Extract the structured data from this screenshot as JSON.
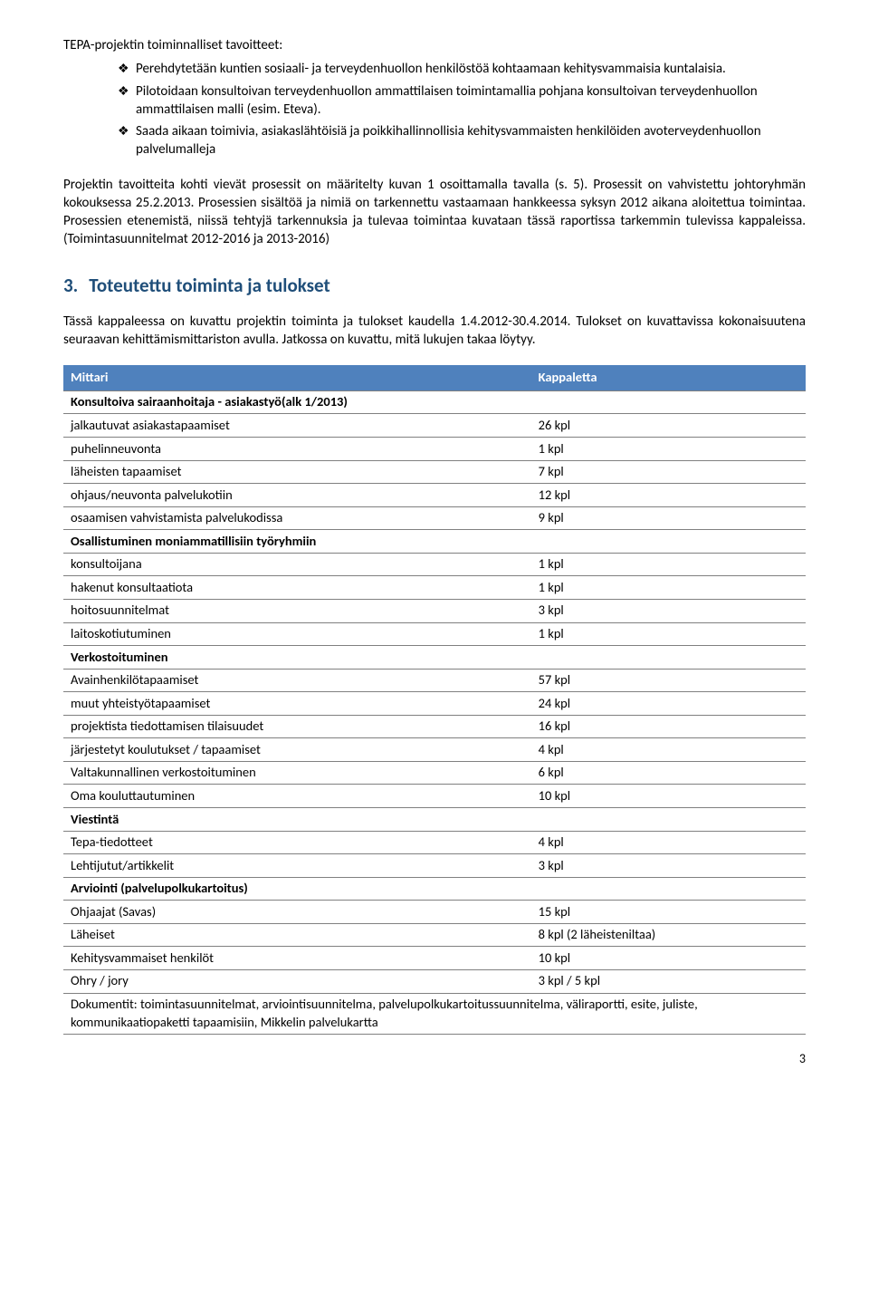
{
  "intro": "TEPA-projektin toiminnalliset tavoitteet:",
  "bullets": [
    "Perehdytetään kuntien sosiaali- ja terveydenhuollon henkilöstöä kohtaamaan kehitysvammaisia kuntalaisia.",
    "Pilotoidaan konsultoivan terveydenhuollon ammattilaisen toimintamallia pohjana konsultoivan terveydenhuollon ammattilaisen malli (esim. Eteva).",
    "Saada aikaan toimivia, asiakaslähtöisiä ja poikkihallinnollisia kehitysvammaisten henkilöiden avoterveydenhuollon palvelumalleja"
  ],
  "para1": "Projektin tavoitteita kohti vievät prosessit on määritelty kuvan 1 osoittamalla tavalla (s. 5). Prosessit on vahvistettu johtoryhmän kokouksessa 25.2.2013. Prosessien sisältöä ja nimiä on tarkennettu vastaamaan hankkeessa syksyn 2012 aikana aloitettua toimintaa. Prosessien etenemistä, niissä tehtyjä tarkennuksia ja tulevaa toimintaa kuvataan tässä raportissa tarkemmin tulevissa kappaleissa. (Toimintasuunnitelmat 2012-2016 ja 2013-2016)",
  "heading": {
    "num": "3.",
    "text": "Toteutettu toiminta ja tulokset"
  },
  "para2": "Tässä kappaleessa on kuvattu projektin toiminta ja tulokset kaudella 1.4.2012-30.4.2014. Tulokset on kuvattavissa kokonaisuutena seuraavan kehittämismittariston avulla. Jatkossa on kuvattu, mitä lukujen takaa löytyy.",
  "table": {
    "header_left": "Mittari",
    "header_right": "Kappaletta",
    "header_bg": "#4f81bd",
    "header_fg": "#ffffff",
    "border_color": "#808080",
    "rows": [
      {
        "type": "section",
        "label": "Konsultoiva sairaanhoitaja - asiakastyö(alk 1/2013)",
        "value": ""
      },
      {
        "type": "data",
        "label": "jalkautuvat asiakastapaamiset",
        "value": "26 kpl"
      },
      {
        "type": "data",
        "label": "puhelinneuvonta",
        "value": "1 kpl"
      },
      {
        "type": "data",
        "label": "läheisten tapaamiset",
        "value": "7 kpl"
      },
      {
        "type": "data",
        "label": "ohjaus/neuvonta palvelukotiin",
        "value": "12 kpl"
      },
      {
        "type": "data",
        "label": "osaamisen vahvistamista palvelukodissa",
        "value": "9 kpl"
      },
      {
        "type": "section",
        "label": "Osallistuminen moniammatillisiin työryhmiin",
        "value": ""
      },
      {
        "type": "data",
        "label": "konsultoijana",
        "value": "1 kpl"
      },
      {
        "type": "data",
        "label": "hakenut konsultaatiota",
        "value": "1 kpl"
      },
      {
        "type": "data",
        "label": "hoitosuunnitelmat",
        "value": "3 kpl"
      },
      {
        "type": "data",
        "label": "laitoskotiutuminen",
        "value": "1 kpl"
      },
      {
        "type": "section",
        "label": "Verkostoituminen",
        "value": ""
      },
      {
        "type": "data",
        "label": "Avainhenkilötapaamiset",
        "value": "57 kpl"
      },
      {
        "type": "data",
        "label": "muut yhteistyötapaamiset",
        "value": "24 kpl"
      },
      {
        "type": "data",
        "label": "projektista tiedottamisen tilaisuudet",
        "value": "16 kpl"
      },
      {
        "type": "data",
        "label": "järjestetyt koulutukset / tapaamiset",
        "value": "4 kpl"
      },
      {
        "type": "data",
        "label": "Valtakunnallinen verkostoituminen",
        "value": "6 kpl"
      },
      {
        "type": "data",
        "label": "Oma kouluttautuminen",
        "value": "10 kpl"
      },
      {
        "type": "section",
        "label": "Viestintä",
        "value": ""
      },
      {
        "type": "data",
        "label": "Tepa-tiedotteet",
        "value": "4 kpl"
      },
      {
        "type": "data",
        "label": "Lehtijutut/artikkelit",
        "value": "3 kpl"
      },
      {
        "type": "section",
        "label": "Arviointi (palvelupolkukartoitus)",
        "value": ""
      },
      {
        "type": "data",
        "label": "Ohjaajat (Savas)",
        "value": "15 kpl"
      },
      {
        "type": "data",
        "label": "Läheiset",
        "value": "8 kpl (2 läheisteniltaa)"
      },
      {
        "type": "data",
        "label": "Kehitysvammaiset henkilöt",
        "value": "10 kpl"
      },
      {
        "type": "data",
        "label": "Ohry / jory",
        "value": "3 kpl / 5 kpl"
      },
      {
        "type": "data",
        "label": "Dokumentit: toimintasuunnitelmat, arviointisuunnitelma, palvelupolkukartoitussuunnitelma, väliraportti, esite, juliste, kommunikaatiopaketti tapaamisiin, Mikkelin palvelukartta",
        "value": "",
        "colspan": 2
      }
    ]
  },
  "page_number": "3"
}
